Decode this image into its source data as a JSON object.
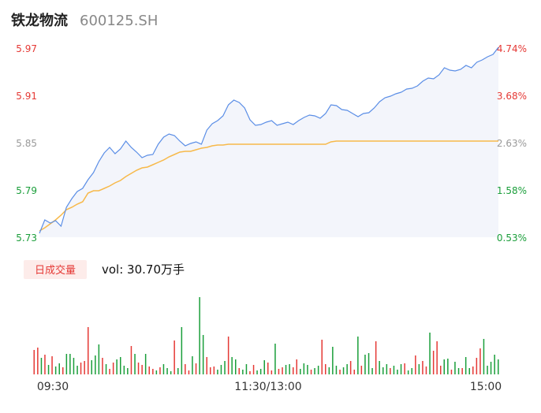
{
  "header": {
    "name": "铁龙物流",
    "code": "600125.SH"
  },
  "volume_panel": {
    "badge": "日成交量",
    "summary": "vol: 30.70万手"
  },
  "colors": {
    "up": "#e53935",
    "down": "#1a9e3a",
    "price_line": "#5b8ee6",
    "avg_line": "#f7b94a",
    "area_fill": "#f3f5fb",
    "neutral": "#999999"
  },
  "chart_data": [
    {
      "type": "line",
      "x_ticks": [
        "09:30",
        "11:30/13:00",
        "15:00"
      ],
      "y_ticks_left": [
        "5.97",
        "5.91",
        "5.85",
        "5.79",
        "5.73"
      ],
      "y_ticks_right": [
        "4.74%",
        "3.68%",
        "2.63%",
        "1.58%",
        "0.53%"
      ],
      "ylim": [
        5.73,
        5.97
      ],
      "series": [
        {
          "role": "price",
          "values": [
            5.735,
            5.752,
            5.748,
            5.751,
            5.744,
            5.768,
            5.779,
            5.788,
            5.792,
            5.803,
            5.812,
            5.826,
            5.837,
            5.844,
            5.836,
            5.842,
            5.852,
            5.844,
            5.838,
            5.831,
            5.834,
            5.835,
            5.848,
            5.857,
            5.861,
            5.859,
            5.852,
            5.846,
            5.849,
            5.851,
            5.848,
            5.866,
            5.874,
            5.878,
            5.884,
            5.898,
            5.904,
            5.901,
            5.894,
            5.879,
            5.872,
            5.873,
            5.876,
            5.878,
            5.872,
            5.874,
            5.876,
            5.873,
            5.878,
            5.882,
            5.885,
            5.884,
            5.881,
            5.887,
            5.898,
            5.897,
            5.892,
            5.891,
            5.887,
            5.883,
            5.887,
            5.888,
            5.894,
            5.902,
            5.907,
            5.909,
            5.912,
            5.914,
            5.918,
            5.919,
            5.922,
            5.928,
            5.932,
            5.931,
            5.936,
            5.945,
            5.942,
            5.941,
            5.943,
            5.948,
            5.945,
            5.952,
            5.955,
            5.959,
            5.962,
            5.971
          ],
          "label": ""
        },
        {
          "role": "average",
          "values": [
            5.738,
            5.742,
            5.747,
            5.752,
            5.758,
            5.765,
            5.768,
            5.772,
            5.775,
            5.786,
            5.789,
            5.789,
            5.792,
            5.795,
            5.799,
            5.802,
            5.807,
            5.811,
            5.815,
            5.818,
            5.819,
            5.822,
            5.825,
            5.828,
            5.832,
            5.835,
            5.838,
            5.839,
            5.839,
            5.841,
            5.843,
            5.844,
            5.846,
            5.847,
            5.847,
            5.848,
            5.848,
            5.848,
            5.848,
            5.848,
            5.848,
            5.848,
            5.848,
            5.848,
            5.848,
            5.848,
            5.848,
            5.848,
            5.848,
            5.848,
            5.848,
            5.848,
            5.848,
            5.848,
            5.851,
            5.852,
            5.852,
            5.852,
            5.852,
            5.852,
            5.852,
            5.852,
            5.852,
            5.852,
            5.852,
            5.852,
            5.852,
            5.852,
            5.852,
            5.852,
            5.852,
            5.852,
            5.852,
            5.852,
            5.852,
            5.852,
            5.852,
            5.852,
            5.852,
            5.852,
            5.852,
            5.852,
            5.852,
            5.852,
            5.852,
            5.852
          ],
          "label": ""
        }
      ]
    },
    {
      "type": "bar",
      "x_ticks": [
        "09:30",
        "11:30/13:00",
        "15:00"
      ],
      "values": [
        3.1,
        3.4,
        2.1,
        2.5,
        1.2,
        2.3,
        1.0,
        1.4,
        0.9,
        2.6,
        2.6,
        2.1,
        1.1,
        1.5,
        1.7,
        6.0,
        1.8,
        2.4,
        3.8,
        2.1,
        1.3,
        0.7,
        1.5,
        1.9,
        2.2,
        1.1,
        0.8,
        3.6,
        2.6,
        1.5,
        1.2,
        2.6,
        1.0,
        0.7,
        0.5,
        0.9,
        1.3,
        0.8,
        0.4,
        4.3,
        0.8,
        6.0,
        1.3,
        0.5,
        2.3,
        1.4,
        9.8,
        5.0,
        2.2,
        0.9,
        1.0,
        0.6,
        1.2,
        1.7,
        4.8,
        2.2,
        1.9,
        0.8,
        0.6,
        1.3,
        0.4,
        1.2,
        0.5,
        0.7,
        1.8,
        1.5,
        0.5,
        3.9,
        0.7,
        0.9,
        1.2,
        1.3,
        0.9,
        1.9,
        0.7,
        1.4,
        1.2,
        0.6,
        0.8,
        1.1,
        4.4,
        1.3,
        0.9,
        3.5,
        1.1,
        0.6,
        0.9,
        1.3,
        1.7,
        0.6,
        4.8,
        1.1,
        2.5,
        2.7,
        0.8,
        4.2,
        1.7,
        0.9,
        1.3,
        0.8,
        1.1,
        0.6,
        1.3,
        1.4,
        0.5,
        0.8,
        2.4,
        1.3,
        1.7,
        1.0,
        5.3,
        3.0,
        4.2,
        1.1,
        1.9,
        2.0,
        0.6,
        1.6,
        0.8,
        0.8,
        2.2,
        0.8,
        1.0,
        2.1,
        3.3,
        4.5,
        1.1,
        1.6,
        2.5,
        1.9
      ],
      "directions": "uudududdudddduuuddduduudddduduuduududddudduududduuuddduddudduuddduuduudduudddudduudddudduududddudddudddudduduuduuudduddudduuu",
      "ylim": [
        0,
        10
      ]
    }
  ]
}
